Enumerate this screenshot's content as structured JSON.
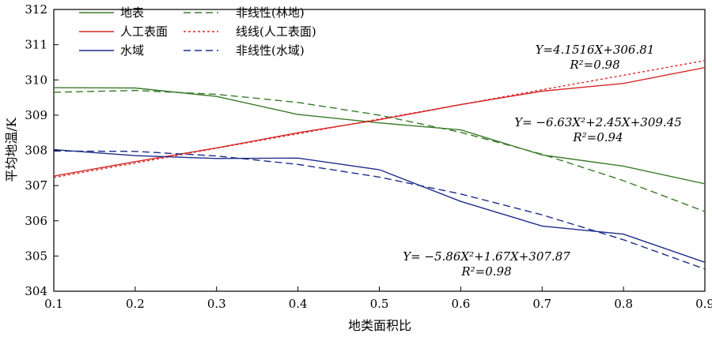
{
  "chart_data": {
    "type": "line",
    "title": "",
    "xlabel": "地类面积比",
    "ylabel": "平均地温/K",
    "xlim": [
      0.1,
      0.9
    ],
    "ylim": [
      304,
      312
    ],
    "xticks": [
      "0.1",
      "0.2",
      "0.3",
      "0.4",
      "0.5",
      "0.6",
      "0.7",
      "0.8",
      "0.9"
    ],
    "yticks": [
      "304",
      "305",
      "306",
      "307",
      "308",
      "309",
      "310",
      "311",
      "312"
    ],
    "x": [
      0.1,
      0.2,
      0.3,
      0.4,
      0.5,
      0.6,
      0.7,
      0.8,
      0.9
    ],
    "grid": false,
    "legend_position": "top-left",
    "series": [
      {
        "name": "地表",
        "style": "solid",
        "color": "#3a7a2a",
        "values": [
          309.78,
          309.77,
          309.53,
          309.02,
          308.78,
          308.58,
          307.87,
          307.55,
          307.05
        ]
      },
      {
        "name": "人工表面",
        "style": "solid",
        "color": "#d62828",
        "values": [
          307.27,
          307.68,
          308.07,
          308.5,
          308.87,
          309.3,
          309.68,
          309.9,
          310.35
        ]
      },
      {
        "name": "水域",
        "style": "solid",
        "color": "#1f2d8a",
        "values": [
          308.02,
          307.85,
          307.77,
          307.78,
          307.45,
          306.55,
          305.85,
          305.62,
          304.82
        ]
      },
      {
        "name": "非线性(林地)",
        "style": "dashed",
        "color": "#3a7a2a",
        "values": [
          309.65,
          309.7,
          309.59,
          309.36,
          309.0,
          308.51,
          307.89,
          307.14,
          306.26
        ]
      },
      {
        "name": "线线(人工表面)",
        "style": "dotted",
        "color": "#d62828",
        "values": [
          307.23,
          307.64,
          308.06,
          308.47,
          308.89,
          309.3,
          309.72,
          310.13,
          310.55
        ]
      },
      {
        "name": "非线性(水域)",
        "style": "dashed",
        "color": "#1f2d8a",
        "values": [
          307.98,
          307.97,
          307.84,
          307.6,
          307.24,
          306.76,
          306.17,
          305.46,
          304.63
        ]
      }
    ],
    "annotations": [
      {
        "id": "red",
        "line1": "Y=4.1516X+306.81",
        "line2": "R²=0.98"
      },
      {
        "id": "green",
        "line1": "Y= −6.63X²+2.45X+309.45",
        "line2": "R²=0.94"
      },
      {
        "id": "blue",
        "line1": "Y= −5.86X²+1.67X+307.87",
        "line2": "R²=0.98"
      }
    ]
  }
}
